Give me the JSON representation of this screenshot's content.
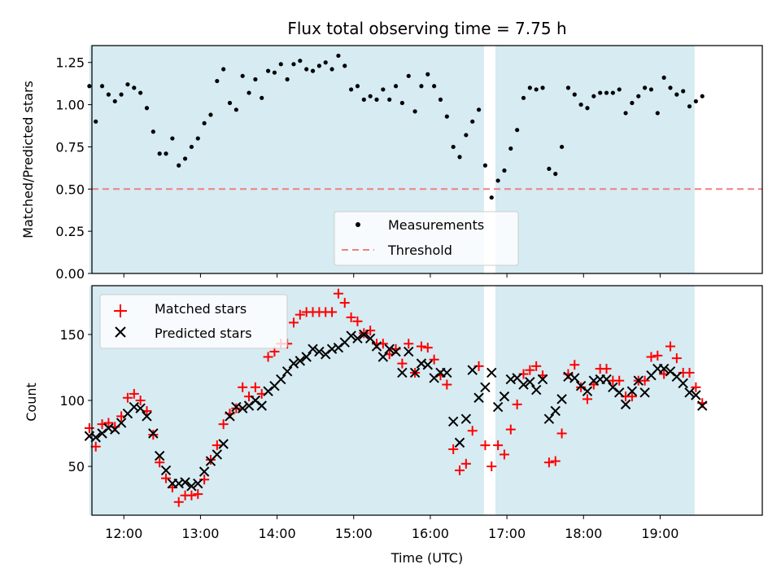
{
  "chart_data": [
    {
      "type": "scatter",
      "title": "Flux total observing time = 7.75 h",
      "xlabel": "",
      "ylabel": "Matched/Predicted stars",
      "xlim": [
        "11:35",
        "20:20"
      ],
      "ylim": [
        0,
        1.35
      ],
      "yticks": [
        "0.00",
        "0.25",
        "0.50",
        "0.75",
        "1.00",
        "1.25"
      ],
      "shaded_ranges": [
        [
          "11:33",
          "16:42"
        ],
        [
          "16:51",
          "19:27"
        ]
      ],
      "threshold": 0.5,
      "legend_position": "lower-center",
      "series": [
        {
          "name": "Measurements",
          "color": "#000000",
          "marker": "dot",
          "x": [
            "11:33",
            "11:38",
            "11:43",
            "11:48",
            "11:53",
            "11:58",
            "12:03",
            "12:08",
            "12:13",
            "12:18",
            "12:23",
            "12:28",
            "12:33",
            "12:38",
            "12:43",
            "12:48",
            "12:53",
            "12:58",
            "13:03",
            "13:08",
            "13:13",
            "13:18",
            "13:23",
            "13:28",
            "13:33",
            "13:38",
            "13:43",
            "13:48",
            "13:53",
            "13:58",
            "14:03",
            "14:08",
            "14:13",
            "14:18",
            "14:23",
            "14:28",
            "14:33",
            "14:38",
            "14:43",
            "14:48",
            "14:53",
            "14:58",
            "15:03",
            "15:08",
            "15:13",
            "15:18",
            "15:23",
            "15:28",
            "15:33",
            "15:38",
            "15:43",
            "15:48",
            "15:53",
            "15:58",
            "16:03",
            "16:08",
            "16:13",
            "16:18",
            "16:23",
            "16:28",
            "16:33",
            "16:38",
            "16:43",
            "16:48",
            "16:53",
            "16:58",
            "17:03",
            "17:08",
            "17:13",
            "17:18",
            "17:23",
            "17:28",
            "17:33",
            "17:38",
            "17:43",
            "17:48",
            "17:53",
            "17:58",
            "18:03",
            "18:08",
            "18:13",
            "18:18",
            "18:23",
            "18:28",
            "18:33",
            "18:38",
            "18:43",
            "18:48",
            "18:53",
            "18:58",
            "19:03",
            "19:08",
            "19:13",
            "19:18",
            "19:23",
            "19:28",
            "19:33"
          ],
          "y": [
            1.11,
            0.9,
            1.11,
            1.06,
            1.02,
            1.06,
            1.12,
            1.1,
            1.07,
            0.98,
            0.84,
            0.71,
            0.71,
            0.8,
            0.64,
            0.68,
            0.75,
            0.8,
            0.89,
            0.94,
            1.14,
            1.21,
            1.01,
            0.97,
            1.17,
            1.07,
            1.15,
            1.04,
            1.2,
            1.19,
            1.24,
            1.15,
            1.24,
            1.26,
            1.21,
            1.2,
            1.23,
            1.25,
            1.21,
            1.29,
            1.23,
            1.09,
            1.11,
            1.03,
            1.05,
            1.03,
            1.09,
            1.03,
            1.11,
            1.01,
            1.17,
            0.96,
            1.11,
            1.18,
            1.11,
            1.03,
            0.93,
            0.75,
            0.69,
            0.82,
            0.9,
            0.97,
            0.64,
            0.45,
            0.55,
            0.61,
            0.74,
            0.85,
            1.04,
            1.1,
            1.09,
            1.1,
            0.62,
            0.59,
            0.75,
            1.1,
            1.06,
            1.0,
            0.98,
            1.05,
            1.07,
            1.07,
            1.07,
            1.09,
            0.95,
            1.01,
            1.05,
            1.1,
            1.09,
            0.95,
            1.16,
            1.1,
            1.06,
            1.08,
            0.99,
            1.02,
            1.05
          ]
        },
        {
          "name": "Threshold",
          "color": "#f08080",
          "marker": "dashed-line",
          "y": 0.5
        }
      ]
    },
    {
      "type": "scatter",
      "title": "",
      "xlabel": "Time (UTC)",
      "ylabel": "Count",
      "xlim": [
        "11:35",
        "20:20"
      ],
      "ylim": [
        13,
        187
      ],
      "yticks": [
        "50",
        "100",
        "150"
      ],
      "xticks": [
        "12:00",
        "13:00",
        "14:00",
        "15:00",
        "16:00",
        "17:00",
        "18:00",
        "19:00"
      ],
      "shaded_ranges": [
        [
          "11:33",
          "16:42"
        ],
        [
          "16:51",
          "19:27"
        ]
      ],
      "legend_position": "upper-left",
      "series": [
        {
          "name": "Matched stars",
          "color": "#ff0000",
          "marker": "plus",
          "x": [
            "11:33",
            "11:38",
            "11:43",
            "11:48",
            "11:53",
            "11:58",
            "12:03",
            "12:08",
            "12:13",
            "12:18",
            "12:23",
            "12:28",
            "12:33",
            "12:38",
            "12:43",
            "12:48",
            "12:53",
            "12:58",
            "13:03",
            "13:08",
            "13:13",
            "13:18",
            "13:23",
            "13:28",
            "13:33",
            "13:38",
            "13:43",
            "13:48",
            "13:53",
            "13:58",
            "14:03",
            "14:08",
            "14:13",
            "14:18",
            "14:23",
            "14:28",
            "14:33",
            "14:38",
            "14:43",
            "14:48",
            "14:53",
            "14:58",
            "15:03",
            "15:08",
            "15:13",
            "15:18",
            "15:23",
            "15:28",
            "15:33",
            "15:38",
            "15:43",
            "15:48",
            "15:53",
            "15:58",
            "16:03",
            "16:08",
            "16:13",
            "16:18",
            "16:23",
            "16:28",
            "16:33",
            "16:38",
            "16:43",
            "16:48",
            "16:53",
            "16:58",
            "17:03",
            "17:08",
            "17:13",
            "17:18",
            "17:23",
            "17:28",
            "17:33",
            "17:38",
            "17:43",
            "17:48",
            "17:53",
            "17:58",
            "18:03",
            "18:08",
            "18:13",
            "18:18",
            "18:23",
            "18:28",
            "18:33",
            "18:38",
            "18:43",
            "18:48",
            "18:53",
            "18:58",
            "19:03",
            "19:08",
            "19:13",
            "19:18",
            "19:23",
            "19:28",
            "19:33"
          ],
          "y": [
            79,
            65,
            82,
            83,
            80,
            88,
            102,
            105,
            100,
            92,
            74,
            53,
            41,
            34,
            23,
            28,
            28,
            29,
            40,
            55,
            66,
            82,
            90,
            94,
            110,
            103,
            110,
            105,
            133,
            137,
            143,
            143,
            159,
            165,
            167,
            167,
            167,
            167,
            167,
            181,
            174,
            163,
            160,
            151,
            153,
            143,
            143,
            135,
            139,
            128,
            143,
            121,
            141,
            140,
            131,
            119,
            112,
            63,
            47,
            52,
            77,
            126,
            66,
            50,
            66,
            59,
            78,
            97,
            120,
            123,
            126,
            119,
            53,
            54,
            75,
            120,
            127,
            110,
            101,
            112,
            124,
            124,
            115,
            115,
            103,
            103,
            115,
            115,
            133,
            134,
            120,
            141,
            132,
            121,
            121,
            110,
            98
          ]
        },
        {
          "name": "Predicted stars",
          "color": "#000000",
          "marker": "cross",
          "x": [
            "11:33",
            "11:38",
            "11:43",
            "11:48",
            "11:53",
            "11:58",
            "12:03",
            "12:08",
            "12:13",
            "12:18",
            "12:23",
            "12:28",
            "12:33",
            "12:38",
            "12:43",
            "12:48",
            "12:53",
            "12:58",
            "13:03",
            "13:08",
            "13:13",
            "13:18",
            "13:23",
            "13:28",
            "13:33",
            "13:38",
            "13:43",
            "13:48",
            "13:53",
            "13:58",
            "14:03",
            "14:08",
            "14:13",
            "14:18",
            "14:23",
            "14:28",
            "14:33",
            "14:38",
            "14:43",
            "14:48",
            "14:53",
            "14:58",
            "15:03",
            "15:08",
            "15:13",
            "15:18",
            "15:23",
            "15:28",
            "15:33",
            "15:38",
            "15:43",
            "15:48",
            "15:53",
            "15:58",
            "16:03",
            "16:08",
            "16:13",
            "16:18",
            "16:23",
            "16:28",
            "16:33",
            "16:38",
            "16:43",
            "16:48",
            "16:53",
            "16:58",
            "17:03",
            "17:08",
            "17:13",
            "17:18",
            "17:23",
            "17:28",
            "17:33",
            "17:38",
            "17:43",
            "17:48",
            "17:53",
            "17:58",
            "18:03",
            "18:08",
            "18:13",
            "18:18",
            "18:23",
            "18:28",
            "18:33",
            "18:38",
            "18:43",
            "18:48",
            "18:53",
            "18:58",
            "19:03",
            "19:08",
            "19:13",
            "19:18",
            "19:23",
            "19:28",
            "19:33"
          ],
          "y": [
            73,
            72,
            75,
            79,
            78,
            83,
            90,
            95,
            94,
            88,
            75,
            58,
            47,
            37,
            37,
            38,
            35,
            37,
            46,
            54,
            59,
            67,
            88,
            95,
            94,
            96,
            100,
            96,
            107,
            111,
            116,
            122,
            128,
            130,
            133,
            139,
            137,
            135,
            139,
            140,
            144,
            149,
            147,
            150,
            147,
            141,
            133,
            139,
            137,
            121,
            137,
            121,
            128,
            127,
            117,
            121,
            121,
            84,
            68,
            86,
            123,
            102,
            110,
            121,
            95,
            103,
            116,
            117,
            112,
            114,
            108,
            116,
            86,
            92,
            101,
            118,
            117,
            111,
            107,
            115,
            116,
            116,
            110,
            106,
            97,
            107,
            115,
            106,
            119,
            124,
            124,
            122,
            118,
            113,
            106,
            104,
            96
          ]
        }
      ]
    }
  ]
}
